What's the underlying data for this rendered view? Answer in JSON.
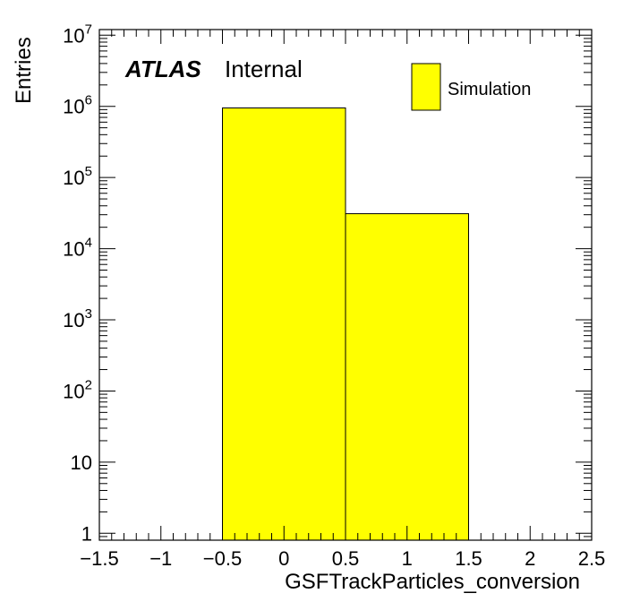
{
  "chart_data": {
    "type": "bar",
    "xlabel": "GSFTrackParticles_conversion",
    "ylabel": "Entries",
    "xlim": [
      -1.5,
      2.5
    ],
    "ylim": [
      0.8,
      12000000
    ],
    "yscale": "log",
    "bins": [
      {
        "x_low": -0.5,
        "x_high": 0.5,
        "value": 950000
      },
      {
        "x_low": 0.5,
        "x_high": 1.5,
        "value": 31000
      }
    ],
    "x_ticks": [
      "−1.5",
      "−1",
      "−0.5",
      "0",
      "0.5",
      "1",
      "1.5",
      "2",
      "2.5"
    ],
    "x_tick_values": [
      -1.5,
      -1,
      -0.5,
      0,
      0.5,
      1,
      1.5,
      2,
      2.5
    ],
    "y_ticks": [
      {
        "value": 1,
        "base": "1",
        "exp": ""
      },
      {
        "value": 10,
        "base": "10",
        "exp": ""
      },
      {
        "value": 100,
        "base": "10",
        "exp": "2"
      },
      {
        "value": 1000,
        "base": "10",
        "exp": "3"
      },
      {
        "value": 10000,
        "base": "10",
        "exp": "4"
      },
      {
        "value": 100000,
        "base": "10",
        "exp": "5"
      },
      {
        "value": 1000000,
        "base": "10",
        "exp": "6"
      },
      {
        "value": 10000000,
        "base": "10",
        "exp": "7"
      }
    ],
    "fill_color": "#ffff00",
    "legend": [
      {
        "label": "Simulation",
        "color": "#ffff00"
      }
    ],
    "legend_position": "top-right",
    "grid": false
  },
  "labels": {
    "atlas": "ATLAS",
    "internal": "Internal"
  }
}
